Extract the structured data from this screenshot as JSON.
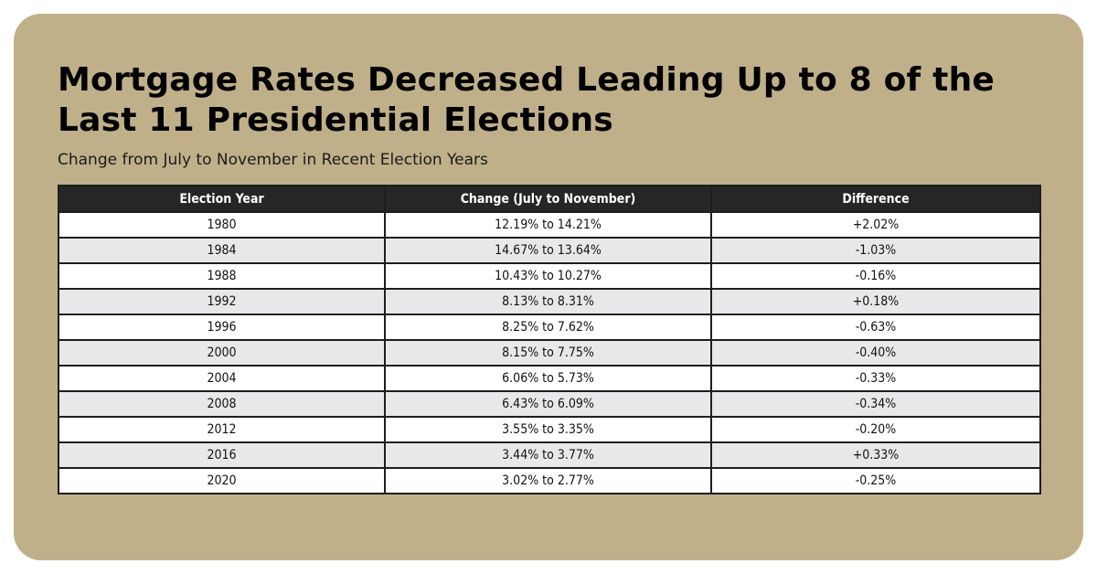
{
  "colors": {
    "background": "#c0b08a",
    "header_bg": "#262626",
    "row_odd": "#ffffff",
    "row_even": "#e8e8ea",
    "border": "#1e1e1e"
  },
  "chart_data": {
    "type": "table",
    "title": "Mortgage Rates Decreased Leading Up to 8 of the Last 11 Presidential Elections",
    "subtitle": "Change from July to November in Recent Election Years",
    "columns": [
      "Election Year",
      "Change (July to November)",
      "Difference"
    ],
    "rows": [
      [
        "1980",
        "12.19% to 14.21%",
        "+2.02%"
      ],
      [
        "1984",
        "14.67% to 13.64%",
        "-1.03%"
      ],
      [
        "1988",
        "10.43% to 10.27%",
        "-0.16%"
      ],
      [
        "1992",
        "8.13% to 8.31%",
        "+0.18%"
      ],
      [
        "1996",
        "8.25% to 7.62%",
        "-0.63%"
      ],
      [
        "2000",
        "8.15% to 7.75%",
        "-0.40%"
      ],
      [
        "2004",
        "6.06% to 5.73%",
        "-0.33%"
      ],
      [
        "2008",
        "6.43% to 6.09%",
        "-0.34%"
      ],
      [
        "2012",
        "3.55% to 3.35%",
        "-0.20%"
      ],
      [
        "2016",
        "3.44% to 3.77%",
        "+0.33%"
      ],
      [
        "2020",
        "3.02% to 2.77%",
        "-0.25%"
      ]
    ]
  }
}
